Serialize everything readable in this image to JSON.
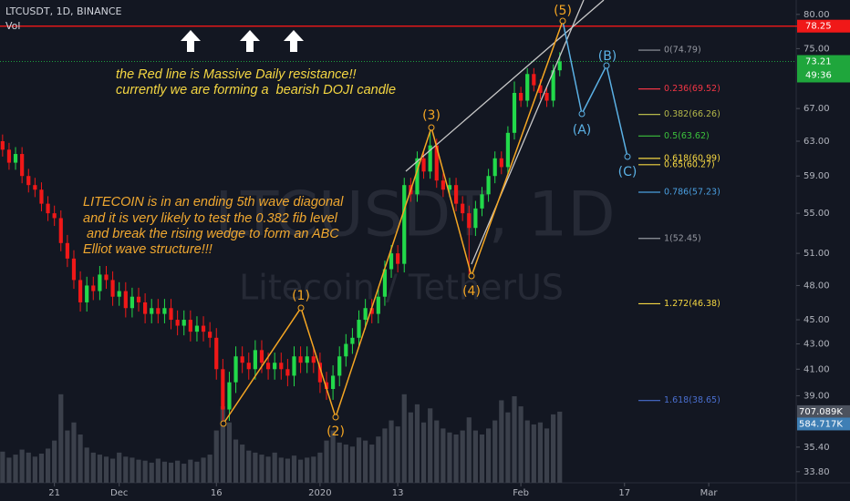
{
  "header": {
    "symbol": "LTCUSDT, 1D, BINANCE",
    "volume_label": "Vol"
  },
  "chart_data": {
    "type": "candlestick",
    "watermark": "LTCUSDT, 1D",
    "watermark_subtitle": "Litecoin / TetherUS",
    "log_scale": true,
    "ylim": [
      33.1,
      82.2
    ],
    "yticks": [
      {
        "value": 80,
        "label": "80.00"
      },
      {
        "value": 75,
        "label": "75.00"
      },
      {
        "value": 67,
        "label": "67.00"
      },
      {
        "value": 63,
        "label": "63.00"
      },
      {
        "value": 59,
        "label": "59.00"
      },
      {
        "value": 55,
        "label": "55.00"
      },
      {
        "value": 51,
        "label": "51.00"
      },
      {
        "value": 48,
        "label": "48.00"
      },
      {
        "value": 45,
        "label": "45.00"
      },
      {
        "value": 43,
        "label": "43.00"
      },
      {
        "value": 41,
        "label": "41.00"
      },
      {
        "value": 39,
        "label": "39.00"
      },
      {
        "value": 35.4,
        "label": "35.40"
      },
      {
        "value": 33.8,
        "label": "33.80"
      }
    ],
    "xlim": [
      -0.4,
      122.5
    ],
    "xticks": [
      {
        "value": 8,
        "label": "21"
      },
      {
        "value": 18,
        "label": "Dec"
      },
      {
        "value": 33,
        "label": "16"
      },
      {
        "value": 49,
        "label": "2020"
      },
      {
        "value": 61,
        "label": "13"
      },
      {
        "value": 80,
        "label": "Feb"
      },
      {
        "value": 96,
        "label": "17"
      },
      {
        "value": 109,
        "label": "Mar"
      }
    ],
    "up_color": "#22d94a",
    "down_color": "#f01818",
    "x": [
      0,
      1,
      2,
      3,
      4,
      5,
      6,
      7,
      8,
      9,
      10,
      11,
      12,
      13,
      14,
      15,
      16,
      17,
      18,
      19,
      20,
      21,
      22,
      23,
      24,
      25,
      26,
      27,
      28,
      29,
      30,
      31,
      32,
      33,
      34,
      35,
      36,
      37,
      38,
      39,
      40,
      41,
      42,
      43,
      44,
      45,
      46,
      47,
      48,
      49,
      50,
      51,
      52,
      53,
      54,
      55,
      56,
      57,
      58,
      59,
      60,
      61,
      62,
      63,
      64,
      65,
      66,
      67,
      68,
      69,
      70,
      71,
      72,
      73,
      74,
      75,
      76,
      77,
      78,
      79,
      80,
      81,
      82,
      83,
      84,
      85,
      86
    ],
    "open": [
      63.0,
      62.0,
      60.5,
      61.5,
      59.0,
      58.0,
      57.5,
      56.0,
      55.0,
      54.5,
      52.0,
      50.5,
      48.5,
      46.5,
      48.0,
      47.5,
      49.0,
      48.5,
      47.0,
      47.5,
      46.0,
      47.0,
      46.5,
      45.5,
      46.0,
      45.5,
      46.0,
      45.0,
      44.5,
      45.0,
      44.0,
      44.5,
      44.0,
      43.5,
      41.0,
      38.0,
      40.0,
      42.0,
      41.5,
      41.0,
      42.5,
      41.5,
      41.0,
      41.5,
      41.0,
      40.5,
      42.0,
      41.5,
      42.0,
      41.5,
      40.0,
      39.5,
      40.5,
      42.0,
      43.0,
      43.5,
      45.0,
      46.0,
      45.5,
      47.0,
      49.5,
      51.0,
      50.0,
      58.0,
      57.0,
      61.0,
      59.5,
      62.5,
      58.5,
      57.5,
      58.0,
      56.0,
      55.0,
      53.5,
      55.5,
      57.0,
      59.0,
      61.0,
      60.0,
      64.0,
      69.0,
      68.0,
      71.5,
      70.0,
      69.0,
      68.0,
      72.0
    ],
    "high": [
      63.8,
      62.8,
      62.3,
      62.3,
      59.8,
      58.8,
      58.3,
      56.8,
      55.8,
      55.3,
      52.8,
      51.3,
      49.3,
      48.8,
      48.8,
      49.8,
      49.8,
      49.3,
      48.3,
      48.3,
      47.8,
      47.8,
      47.3,
      46.8,
      46.8,
      46.8,
      46.8,
      45.8,
      45.8,
      45.8,
      45.3,
      45.3,
      44.8,
      44.3,
      41.8,
      40.8,
      42.8,
      42.8,
      42.3,
      43.3,
      43.3,
      42.3,
      42.3,
      42.3,
      41.8,
      42.8,
      42.8,
      42.8,
      42.8,
      42.3,
      40.8,
      41.3,
      42.8,
      43.8,
      44.3,
      45.8,
      46.8,
      46.8,
      47.8,
      50.3,
      51.8,
      51.8,
      58.8,
      58.8,
      61.8,
      61.8,
      64.8,
      63.3,
      59.3,
      58.8,
      58.8,
      56.8,
      55.8,
      56.3,
      57.8,
      59.8,
      61.8,
      61.8,
      64.8,
      70.5,
      69.8,
      72.3,
      72.3,
      70.8,
      69.8,
      72.8,
      74.5
    ],
    "low": [
      61.2,
      59.7,
      59.7,
      58.2,
      57.2,
      56.7,
      55.2,
      54.2,
      53.7,
      51.2,
      49.7,
      47.7,
      45.7,
      45.7,
      46.7,
      46.7,
      47.7,
      46.2,
      46.2,
      45.2,
      45.2,
      45.7,
      44.7,
      44.7,
      44.7,
      44.7,
      44.2,
      43.7,
      43.7,
      43.2,
      43.2,
      43.2,
      42.7,
      40.2,
      36.9,
      37.2,
      39.2,
      40.7,
      40.2,
      40.2,
      40.7,
      40.2,
      40.2,
      40.2,
      39.7,
      39.7,
      40.7,
      40.7,
      40.7,
      39.2,
      38.7,
      38.7,
      39.7,
      41.2,
      42.2,
      42.7,
      44.2,
      44.7,
      44.7,
      46.2,
      48.7,
      49.2,
      49.2,
      56.2,
      56.2,
      58.7,
      58.7,
      57.7,
      56.7,
      56.7,
      55.2,
      54.2,
      49.0,
      52.7,
      54.7,
      56.2,
      58.2,
      59.2,
      59.2,
      63.2,
      67.2,
      67.2,
      69.2,
      68.2,
      67.2,
      67.2,
      71.2
    ],
    "close": [
      62.0,
      60.5,
      61.5,
      59.0,
      58.0,
      57.5,
      56.0,
      55.0,
      54.5,
      52.0,
      50.5,
      48.5,
      46.5,
      48.0,
      47.5,
      49.0,
      48.5,
      47.0,
      47.5,
      46.0,
      47.0,
      46.5,
      45.5,
      46.0,
      45.5,
      46.0,
      45.0,
      44.5,
      45.0,
      44.0,
      44.5,
      44.0,
      43.5,
      41.0,
      38.0,
      40.0,
      42.0,
      41.5,
      41.0,
      42.5,
      41.5,
      41.0,
      41.5,
      41.0,
      40.5,
      42.0,
      41.5,
      42.0,
      41.5,
      40.0,
      39.5,
      40.5,
      42.0,
      43.0,
      43.5,
      45.0,
      46.0,
      45.5,
      47.0,
      49.5,
      51.0,
      50.0,
      58.0,
      57.0,
      61.0,
      59.5,
      62.5,
      58.5,
      57.5,
      58.0,
      56.0,
      55.0,
      53.5,
      55.5,
      57.0,
      59.0,
      61.0,
      60.0,
      64.0,
      69.0,
      68.0,
      71.5,
      70.0,
      69.0,
      68.0,
      72.0,
      73.21
    ],
    "volume": {
      "values": [
        310,
        250,
        280,
        330,
        300,
        260,
        290,
        340,
        420,
        880,
        520,
        600,
        480,
        350,
        300,
        280,
        260,
        240,
        300,
        260,
        250,
        230,
        220,
        200,
        240,
        210,
        200,
        220,
        190,
        230,
        210,
        250,
        280,
        520,
        760,
        600,
        430,
        380,
        320,
        300,
        280,
        260,
        300,
        250,
        240,
        270,
        230,
        250,
        260,
        300,
        420,
        520,
        400,
        380,
        360,
        450,
        420,
        380,
        460,
        540,
        620,
        560,
        880,
        700,
        780,
        600,
        740,
        620,
        540,
        500,
        480,
        520,
        650,
        520,
        480,
        540,
        620,
        820,
        700,
        860,
        760,
        620,
        580,
        600,
        540,
        680,
        707.089
      ],
      "lim": [
        0,
        4800
      ],
      "color": "#3b404b",
      "last_label": "707.089K",
      "ma_last": 584.717,
      "ma_label": "584.717K",
      "ma_color": "#3f7fb5"
    },
    "resistance": {
      "value": 78.25,
      "color": "#f01818"
    },
    "countdown": "49:36",
    "fib_levels": [
      {
        "value": 74.79,
        "label": "0(74.79)",
        "color": "#9598a1"
      },
      {
        "value": 69.52,
        "label": "0.236(69.52)",
        "color": "#f23645"
      },
      {
        "value": 66.26,
        "label": "0.382(66.26)",
        "color": "#b5b84a"
      },
      {
        "value": 63.62,
        "label": "0.5(63.62)",
        "color": "#3cc13c"
      },
      {
        "value": 60.99,
        "label": "0.618(60.99)",
        "color": "#f5d742"
      },
      {
        "value": 60.27,
        "label": "0.65(60.27)",
        "color": "#f5d742"
      },
      {
        "value": 57.23,
        "label": "0.786(57.23)",
        "color": "#4a9fe0"
      },
      {
        "value": 52.45,
        "label": "1(52.45)",
        "color": "#9598a1"
      },
      {
        "value": 46.38,
        "label": "1.272(46.38)",
        "color": "#f5d742"
      },
      {
        "value": 38.65,
        "label": "1.618(38.65)",
        "color": "#4a6fd0"
      }
    ],
    "annotations": [
      "the Red line is Massive Daily resistance!!",
      "currently we are forming a  bearish DOJI candle",
      "LITECOIN is in an ending 5th wave diagonal",
      "and it is very likely to test the 0.382 fib level",
      " and break the rising wedge to form an ABC",
      "Elliot wave structure!!!"
    ],
    "wave_labels": [
      "(1)",
      "(2)",
      "(3)",
      "(4)",
      "(5)",
      "(A)",
      "(B)",
      "(C)"
    ]
  }
}
